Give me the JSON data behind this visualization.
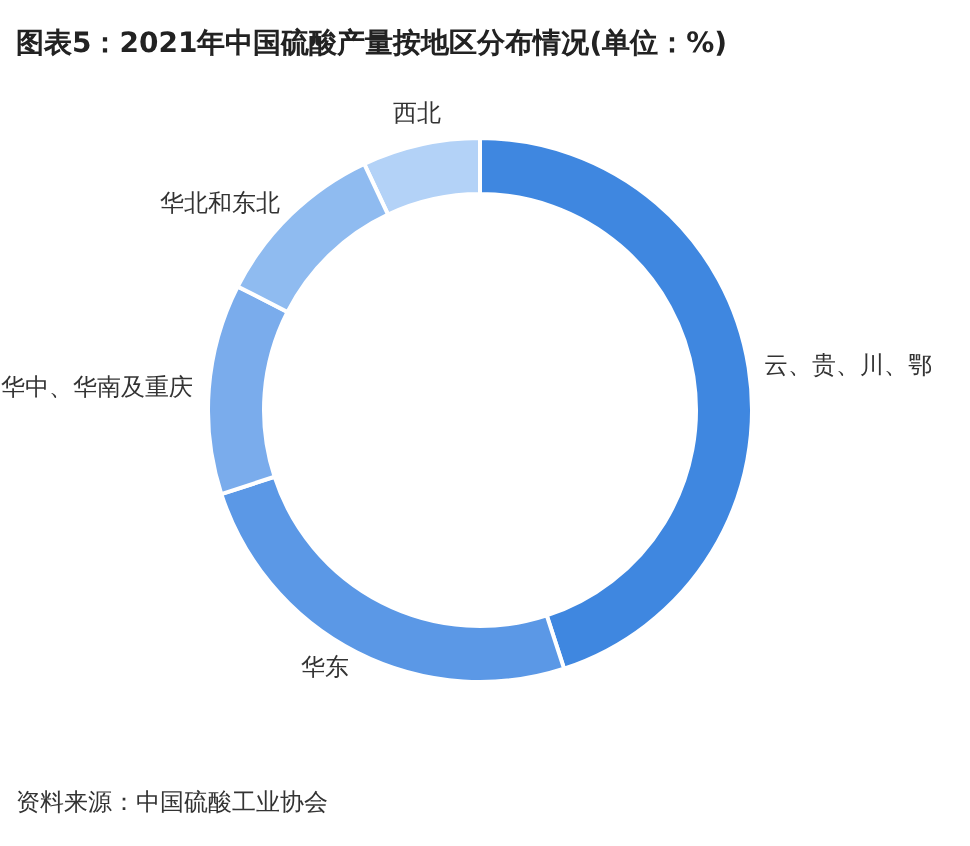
{
  "chart_data": {
    "type": "donut",
    "title": "图表5：2021年中国硫酸产量按地区分布情况(单位：%)",
    "categories": [
      "西北",
      "云、贵、川、鄂",
      "华东",
      "华中、华南及重庆",
      "华北和东北"
    ],
    "values": [
      7,
      45,
      25,
      12.5,
      10.5
    ],
    "colors": [
      "#b3d2f7",
      "#3f87e0",
      "#5b98e6",
      "#7aacec",
      "#8fbbf0"
    ],
    "annotations": [
      "资料来源：中国硫酸工业协会"
    ]
  }
}
